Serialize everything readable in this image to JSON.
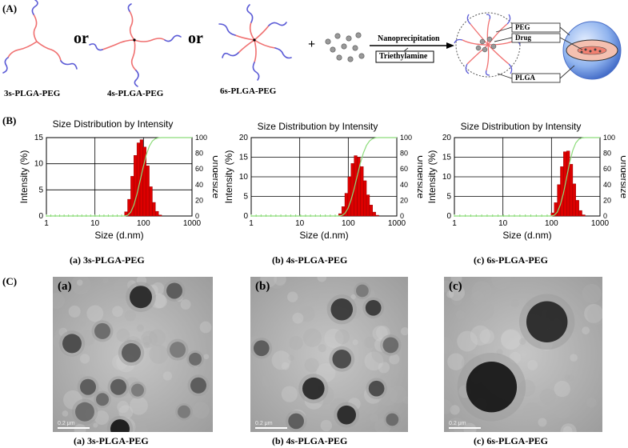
{
  "panel_labels": {
    "a": "(A)",
    "b": "(B)",
    "c": "(C)"
  },
  "scheme": {
    "polymers": [
      "3s-PLGA-PEG",
      "4s-PLGA-PEG",
      "6s-PLGA-PEG"
    ],
    "or_text": "or",
    "plus_text": "+",
    "process": "Nanoprecipitation",
    "reagent": "Triethylamine",
    "legend": {
      "peg": "PEG",
      "drug": "Drug",
      "plga": "PLGA"
    },
    "colors": {
      "peg": "#5b5bd6",
      "plga": "#f07070",
      "sphere": "#8fb3ee"
    }
  },
  "chart_data": [
    {
      "type": "bar",
      "title": "Size Distribution by Intensity",
      "xlabel": "Size (d.nm)",
      "ylabel": "Intensity (%)",
      "y2label": "Undersize",
      "xscale": "log",
      "xlim": [
        1,
        1000
      ],
      "ylim": [
        0,
        15
      ],
      "y2lim": [
        0,
        100
      ],
      "xticks": [
        "1",
        "10",
        "100",
        "1000"
      ],
      "yticks": [
        "0",
        "5",
        "10",
        "15"
      ],
      "y2ticks": [
        "0",
        "20",
        "40",
        "60",
        "80",
        "100"
      ],
      "bars_x": [
        43.8,
        50.7,
        58.8,
        68.1,
        78.8,
        91.3,
        105.7,
        122.4,
        141.8,
        164.2,
        190.1,
        220.2
      ],
      "bars_y": [
        0.8,
        3.2,
        7.6,
        11.6,
        14.0,
        14.6,
        13.2,
        9.6,
        5.6,
        2.6,
        0.9,
        0.2
      ],
      "bar_color": "#dd0000",
      "cumulative_color": "#8cdc7a",
      "caption": "(a) 3s-PLGA-PEG"
    },
    {
      "type": "bar",
      "title": "Size Distribution by Intensity",
      "xlabel": "Size (d.nm)",
      "ylabel": "Intensity (%)",
      "y2label": "Undersize",
      "xscale": "log",
      "xlim": [
        1,
        1000
      ],
      "ylim": [
        0,
        20
      ],
      "y2lim": [
        0,
        100
      ],
      "xticks": [
        "1",
        "10",
        "100",
        "1000"
      ],
      "yticks": [
        "0",
        "5",
        "10",
        "15",
        "20"
      ],
      "y2ticks": [
        "0",
        "20",
        "40",
        "60",
        "80",
        "100"
      ],
      "bars_x": [
        68.1,
        78.8,
        91.3,
        105.7,
        122.4,
        141.8,
        164.2,
        190.1,
        220.2,
        255.0,
        295.3,
        342.0,
        396.1
      ],
      "bars_y": [
        0.6,
        2.4,
        5.8,
        10.0,
        13.4,
        15.4,
        15.0,
        12.6,
        9.0,
        5.4,
        2.8,
        1.0,
        0.2
      ],
      "bar_color": "#dd0000",
      "cumulative_color": "#8cdc7a",
      "caption": "(b) 4s-PLGA-PEG"
    },
    {
      "type": "bar",
      "title": "Size Distribution by Intensity",
      "xlabel": "Size (d.nm)",
      "ylabel": "Intensity (%)",
      "y2label": "Undersize",
      "xscale": "log",
      "xlim": [
        1,
        1000
      ],
      "ylim": [
        0,
        20
      ],
      "y2lim": [
        0,
        100
      ],
      "xticks": [
        "1",
        "10",
        "100",
        "1000"
      ],
      "yticks": [
        "0",
        "5",
        "10",
        "15",
        "20"
      ],
      "y2ticks": [
        "0",
        "20",
        "40",
        "60",
        "80",
        "100"
      ],
      "bars_x": [
        105.7,
        122.4,
        141.8,
        164.2,
        190.1,
        220.2,
        255.0,
        295.3,
        342.0,
        396.1,
        458.7
      ],
      "bars_y": [
        0.8,
        3.4,
        8.0,
        12.6,
        16.4,
        16.6,
        13.2,
        8.2,
        4.0,
        1.4,
        0.3
      ],
      "bar_color": "#dd0000",
      "cumulative_color": "#8cdc7a",
      "caption": "(c) 6s-PLGA-PEG"
    }
  ],
  "tem": [
    {
      "label": "(a)",
      "scale": "0.2 μm",
      "caption": "(a)  3s-PLGA-PEG",
      "particles": [
        [
          0.55,
          0.13,
          0.07,
          "#222"
        ],
        [
          0.76,
          0.09,
          0.05,
          "#555"
        ],
        [
          0.31,
          0.35,
          0.05,
          "#666"
        ],
        [
          0.12,
          0.43,
          0.06,
          "#444"
        ],
        [
          0.49,
          0.49,
          0.06,
          "#555"
        ],
        [
          0.78,
          0.47,
          0.05,
          "#777"
        ],
        [
          0.89,
          0.53,
          0.04,
          "#666"
        ],
        [
          0.22,
          0.71,
          0.05,
          "#555"
        ],
        [
          0.41,
          0.71,
          0.05,
          "#555"
        ],
        [
          0.53,
          0.73,
          0.04,
          "#777"
        ],
        [
          0.31,
          0.79,
          0.04,
          "#666"
        ],
        [
          0.91,
          0.7,
          0.05,
          "#555"
        ],
        [
          0.2,
          0.87,
          0.06,
          "#666"
        ],
        [
          0.82,
          0.87,
          0.04,
          "#777"
        ],
        [
          0.42,
          0.98,
          0.06,
          "#111"
        ]
      ]
    },
    {
      "label": "(b)",
      "scale": "0.2 μm",
      "caption": "(b)  4s-PLGA-PEG",
      "particles": [
        [
          0.58,
          0.21,
          0.07,
          "#333"
        ],
        [
          0.71,
          0.09,
          0.04,
          "#777"
        ],
        [
          0.78,
          0.2,
          0.05,
          "#333"
        ],
        [
          0.07,
          0.46,
          0.05,
          "#555"
        ],
        [
          0.58,
          0.53,
          0.06,
          "#444"
        ],
        [
          0.89,
          0.44,
          0.05,
          "#666"
        ],
        [
          0.4,
          0.72,
          0.07,
          "#222"
        ],
        [
          0.8,
          0.72,
          0.05,
          "#444"
        ],
        [
          0.61,
          0.89,
          0.06,
          "#222"
        ],
        [
          0.29,
          0.93,
          0.05,
          "#555"
        ],
        [
          0.9,
          0.92,
          0.04,
          "#666"
        ]
      ]
    },
    {
      "label": "(c)",
      "scale": "0.2 μm",
      "caption": "(c)  6s-PLGA-PEG",
      "particles": [
        [
          0.65,
          0.29,
          0.13,
          "#222"
        ],
        [
          0.3,
          0.71,
          0.16,
          "#111"
        ]
      ]
    }
  ]
}
